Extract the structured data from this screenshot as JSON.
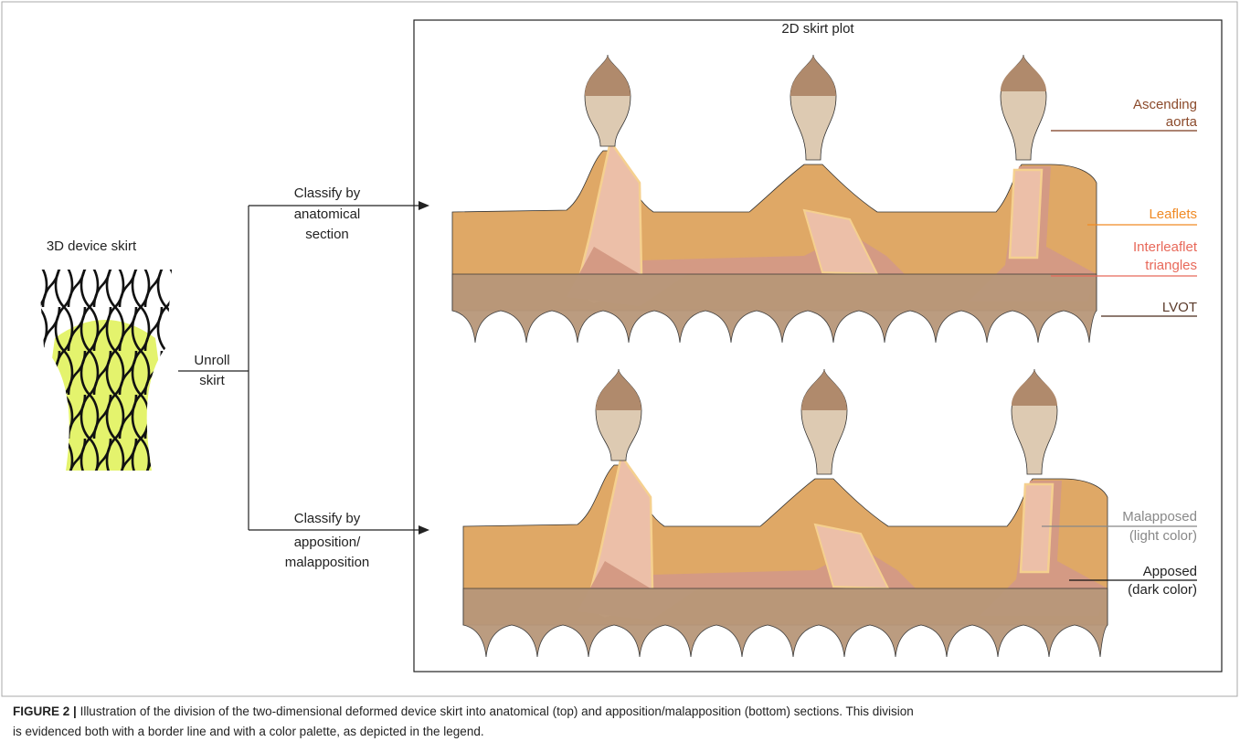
{
  "plot_title": "2D skirt plot",
  "device_label": "3D device skirt",
  "unroll": [
    "Unroll",
    "skirt"
  ],
  "classify_anatomical": [
    "Classify by",
    "anatomical",
    "section"
  ],
  "classify_apposition": [
    "Classify by",
    "apposition/",
    "malapposition"
  ],
  "legend_top": [
    {
      "lines": [
        "Ascending",
        "aorta"
      ]
    },
    {
      "lines": [
        "Leaflets"
      ]
    },
    {
      "lines": [
        "Interleaflet",
        "triangles"
      ]
    },
    {
      "lines": [
        "LVOT"
      ]
    }
  ],
  "legend_bottom": [
    {
      "lines": [
        "Malapposed",
        "(light color)"
      ]
    },
    {
      "lines": [
        "Apposed",
        "(dark color)"
      ]
    }
  ],
  "caption": {
    "label": "FIGURE 2 |",
    "lines": [
      "Illustration of the division of the two-dimensional deformed device skirt into anatomical (top) and apposition/malapposition (bottom) sections. This division",
      "is evidenced both with a border line and with a color palette, as depicted in the legend."
    ]
  }
}
